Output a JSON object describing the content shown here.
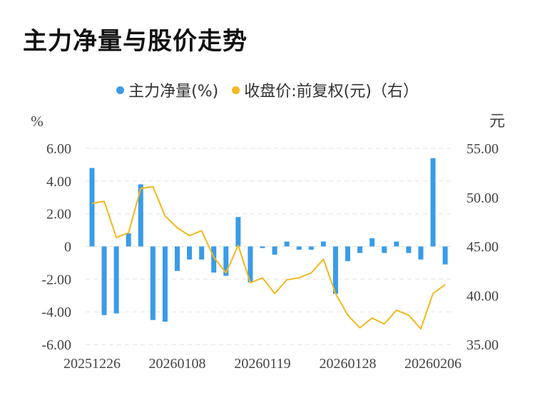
{
  "title": "主力净量与股价走势",
  "colors": {
    "bar": "#3a9be8",
    "line": "#f2b81c",
    "grid": "#e6e6e6",
    "axis_text": "#444"
  },
  "chart_data": {
    "type": "bar+line",
    "legend": [
      {
        "label": "主力净量(%)",
        "color": "#3a9be8"
      },
      {
        "label": "收盘价:前复权(元)（右）",
        "color": "#f2b81c"
      }
    ],
    "left_unit": "%",
    "right_unit": "元",
    "y_left": {
      "min": -6,
      "max": 6,
      "ticks": [
        "6.00",
        "4.00",
        "2.00",
        "0",
        "-2.00",
        "-4.00",
        "-6.00"
      ],
      "tick_values": [
        6,
        4,
        2,
        0,
        -2,
        -4,
        -6
      ]
    },
    "y_right": {
      "min": 35,
      "max": 55,
      "ticks": [
        "55.00",
        "50.00",
        "45.00",
        "40.00",
        "35.00"
      ],
      "tick_values": [
        55,
        50,
        45,
        40,
        35
      ]
    },
    "x_tick_labels": [
      {
        "index": 0,
        "label": "20251226"
      },
      {
        "index": 7,
        "label": "20260108"
      },
      {
        "index": 14,
        "label": "20260119"
      },
      {
        "index": 21,
        "label": "20260128"
      },
      {
        "index": 28,
        "label": "20260206"
      }
    ],
    "grid": true,
    "series": [
      {
        "name": "主力净量(%)",
        "type": "bar",
        "axis": "left",
        "values": [
          4.8,
          -4.2,
          -4.1,
          0.8,
          3.8,
          -4.5,
          -4.6,
          -1.5,
          -0.8,
          -0.8,
          -1.6,
          -1.8,
          1.8,
          -2.2,
          -0.1,
          -0.5,
          0.3,
          -0.2,
          -0.2,
          0.3,
          -2.9,
          -0.9,
          -0.4,
          0.5,
          -0.4,
          0.3,
          -0.4,
          -0.8,
          5.4,
          -1.1
        ]
      },
      {
        "name": "收盘价:前复权(元)",
        "type": "line",
        "axis": "right",
        "values": [
          49.4,
          49.6,
          45.9,
          46.4,
          50.9,
          51.1,
          48.1,
          46.9,
          46.1,
          46.6,
          43.9,
          42.3,
          45.1,
          41.3,
          41.8,
          40.2,
          41.6,
          41.8,
          42.3,
          43.7,
          40.2,
          38.0,
          36.7,
          37.7,
          37.1,
          38.5,
          38.0,
          36.6,
          40.2,
          41.1
        ]
      }
    ]
  }
}
